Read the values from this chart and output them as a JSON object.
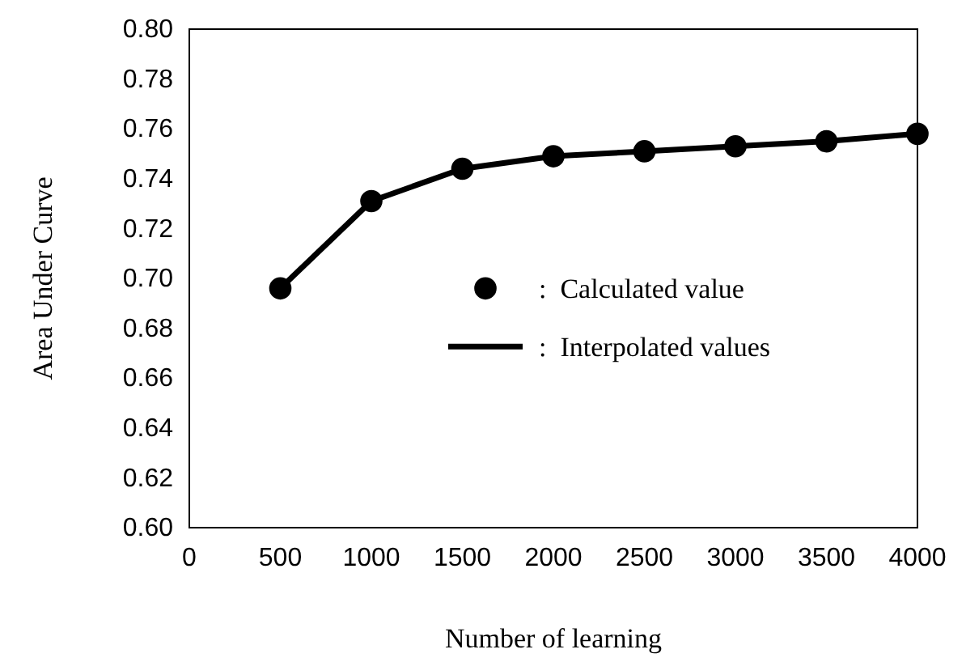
{
  "chart_data": {
    "type": "line",
    "xlabel": "Number of learning",
    "ylabel": "Area Under Curve",
    "x": [
      500,
      1000,
      1500,
      2000,
      2500,
      3000,
      3500,
      4000
    ],
    "series": [
      {
        "name": ":  Calculated value",
        "type": "scatter",
        "color": "#000000",
        "marker": "circle",
        "values": [
          0.696,
          0.731,
          0.744,
          0.749,
          0.751,
          0.753,
          0.755,
          0.758
        ]
      },
      {
        "name": ":  Interpolated values",
        "type": "line",
        "color": "#000000",
        "marker": "none",
        "line_style": "solid",
        "values": [
          0.696,
          0.731,
          0.744,
          0.749,
          0.751,
          0.753,
          0.755,
          0.758
        ]
      }
    ],
    "xlim": [
      0,
      4000
    ],
    "xticks": [
      0,
      500,
      1000,
      1500,
      2000,
      2500,
      3000,
      3500,
      4000
    ],
    "ylim": [
      0.6,
      0.8
    ],
    "yticks": [
      {
        "value": 0.6,
        "label": "0.60"
      },
      {
        "value": 0.62,
        "label": "0.62"
      },
      {
        "value": 0.64,
        "label": "0.64"
      },
      {
        "value": 0.66,
        "label": "0.66"
      },
      {
        "value": 0.68,
        "label": "0.68"
      },
      {
        "value": 0.7,
        "label": "0.70"
      },
      {
        "value": 0.72,
        "label": "0.72"
      },
      {
        "value": 0.74,
        "label": "0.74"
      },
      {
        "value": 0.76,
        "label": "0.76"
      },
      {
        "value": 0.78,
        "label": "0.78"
      },
      {
        "value": 0.8,
        "label": "0.80"
      }
    ],
    "grid": false,
    "legend": "right"
  }
}
